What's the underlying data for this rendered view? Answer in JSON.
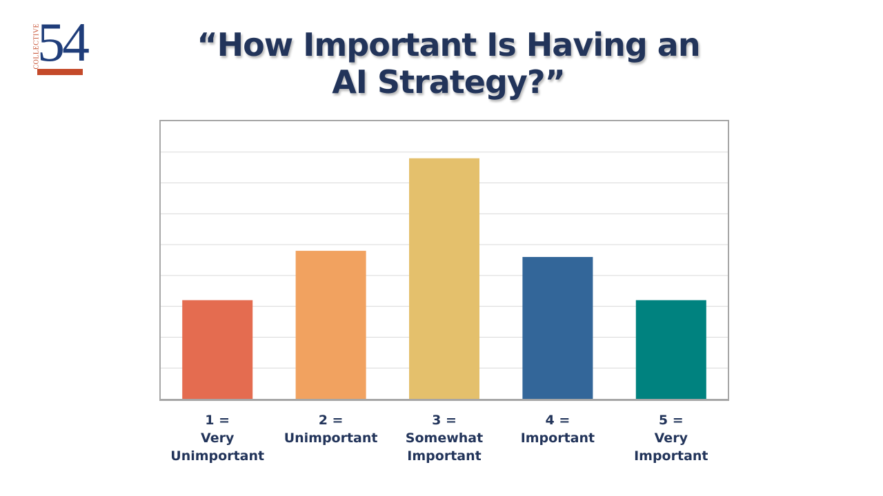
{
  "logo": {
    "word": "COLLECTIVE",
    "number": "54",
    "number_color": "#1f3d7a",
    "accent_color": "#c44a2a"
  },
  "title_line1": "“How Important Is Having an",
  "title_line2": "AI Strategy?”",
  "colors": {
    "title": "#22345a",
    "labels": "#22345a",
    "gridline": "#d9d9d9"
  },
  "chart_data": {
    "type": "bar",
    "categories": [
      "1 = Very Unimportant",
      "2 = Unimportant",
      "3 = Somewhat Important",
      "4 = Important",
      "5 = Very Important"
    ],
    "category_lines": [
      [
        "1 =",
        "Very",
        "Unimportant"
      ],
      [
        "2 =",
        "Unimportant"
      ],
      [
        "3 =",
        "Somewhat",
        "Important"
      ],
      [
        "4 =",
        "Important"
      ],
      [
        "5 =",
        "Very",
        "Important"
      ]
    ],
    "values": [
      3.2,
      4.8,
      7.8,
      4.6,
      3.2
    ],
    "bar_colors": [
      "#e46c50",
      "#f1a260",
      "#e4c06c",
      "#336699",
      "#00827f"
    ],
    "ylim": [
      0,
      9
    ],
    "grid": true,
    "legend": "none",
    "title": "“How Important Is Having an AI Strategy?”",
    "xlabel": "",
    "ylabel": ""
  }
}
